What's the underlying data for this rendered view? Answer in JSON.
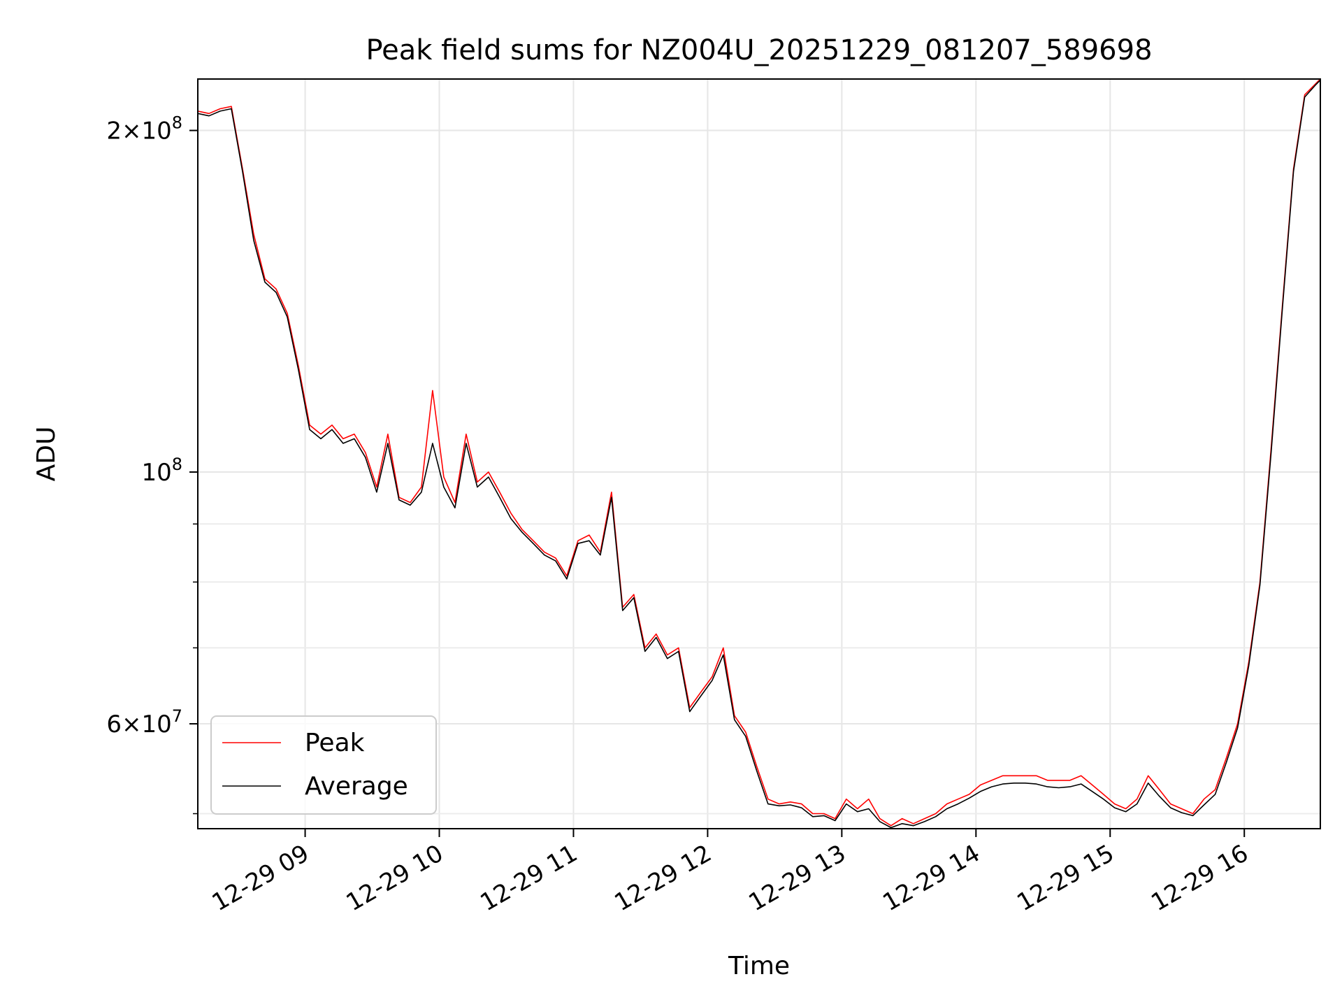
{
  "chart_data": {
    "type": "line",
    "title": "Peak field sums for NZ004U_20251229_081207_589698",
    "xlabel": "Time",
    "ylabel": "ADU",
    "yscale": "log",
    "xlim": [
      "2025-12-29 08:12",
      "2025-12-29 16:34"
    ],
    "ylim": [
      48500000,
      222000000
    ],
    "x_ticks": [
      "12-29 09",
      "12-29 10",
      "12-29 11",
      "12-29 12",
      "12-29 13",
      "12-29 14",
      "12-29 15",
      "12-29 16"
    ],
    "y_ticks": [
      {
        "value": 200000000,
        "mant": "2",
        "exp": "8"
      },
      {
        "value": 100000000,
        "mant": "",
        "exp": "8"
      },
      {
        "value": 60000000,
        "mant": "6",
        "exp": "7"
      }
    ],
    "y_minor_ticks": [
      50000000,
      70000000,
      80000000,
      90000000
    ],
    "grid": true,
    "legend_position": "lower-left",
    "colors": {
      "peak": "#ff0000",
      "average": "#000000"
    },
    "x": [
      "08:12",
      "08:17",
      "08:22",
      "08:27",
      "08:32",
      "08:37",
      "08:42",
      "08:47",
      "08:52",
      "08:57",
      "09:02",
      "09:07",
      "09:12",
      "09:17",
      "09:22",
      "09:27",
      "09:32",
      "09:37",
      "09:42",
      "09:47",
      "09:52",
      "09:57",
      "10:02",
      "10:07",
      "10:12",
      "10:17",
      "10:22",
      "10:27",
      "10:32",
      "10:37",
      "10:42",
      "10:47",
      "10:52",
      "10:57",
      "11:02",
      "11:07",
      "11:12",
      "11:17",
      "11:22",
      "11:27",
      "11:32",
      "11:37",
      "11:42",
      "11:47",
      "11:52",
      "11:57",
      "12:02",
      "12:07",
      "12:12",
      "12:17",
      "12:22",
      "12:27",
      "12:32",
      "12:37",
      "12:42",
      "12:47",
      "12:52",
      "12:57",
      "13:02",
      "13:07",
      "13:12",
      "13:17",
      "13:22",
      "13:27",
      "13:32",
      "13:37",
      "13:42",
      "13:47",
      "13:52",
      "13:57",
      "14:02",
      "14:07",
      "14:12",
      "14:17",
      "14:22",
      "14:27",
      "14:32",
      "14:37",
      "14:42",
      "14:47",
      "14:52",
      "14:57",
      "15:02",
      "15:07",
      "15:12",
      "15:17",
      "15:22",
      "15:27",
      "15:32",
      "15:37",
      "15:42",
      "15:47",
      "15:52",
      "15:57",
      "16:02",
      "16:07",
      "16:12",
      "16:17",
      "16:22",
      "16:27",
      "16:32",
      "16:34"
    ],
    "series": [
      {
        "name": "Peak",
        "values": [
          208000000,
          207000000,
          209000000,
          210000000,
          185000000,
          162000000,
          148000000,
          145000000,
          138000000,
          124000000,
          110000000,
          108000000,
          110000000,
          107000000,
          108000000,
          104000000,
          97000000,
          108000000,
          95000000,
          94000000,
          97000000,
          118000000,
          99000000,
          94000000,
          108000000,
          98000000,
          100000000,
          96000000,
          92000000,
          89000000,
          87000000,
          85000000,
          84000000,
          81000000,
          87000000,
          88000000,
          85000000,
          96000000,
          76000000,
          78000000,
          70000000,
          72000000,
          69000000,
          70000000,
          62000000,
          64000000,
          66000000,
          70000000,
          61000000,
          59000000,
          55000000,
          51500000,
          51000000,
          51200000,
          51000000,
          50000000,
          50000000,
          49500000,
          51500000,
          50500000,
          51500000,
          49500000,
          48800000,
          49500000,
          49000000,
          49500000,
          50000000,
          51000000,
          51500000,
          52000000,
          53000000,
          53500000,
          54000000,
          54000000,
          54000000,
          54000000,
          53500000,
          53500000,
          53500000,
          54000000,
          53000000,
          52000000,
          51000000,
          50500000,
          51500000,
          54000000,
          52500000,
          51000000,
          50500000,
          50000000,
          51500000,
          52500000,
          56000000,
          60000000,
          68000000,
          80000000,
          105000000,
          140000000,
          185000000,
          215000000,
          220000000,
          222000000
        ]
      },
      {
        "name": "Average",
        "values": [
          207000000,
          206000000,
          208000000,
          209000000,
          184000000,
          160000000,
          147000000,
          144000000,
          137000000,
          123000000,
          109000000,
          107000000,
          109000000,
          106000000,
          107000000,
          103000000,
          96000000,
          106000000,
          94500000,
          93500000,
          96000000,
          106000000,
          97000000,
          93000000,
          106000000,
          97000000,
          99000000,
          95000000,
          91000000,
          88500000,
          86500000,
          84500000,
          83500000,
          80500000,
          86500000,
          87000000,
          84500000,
          95000000,
          75500000,
          77500000,
          69500000,
          71500000,
          68500000,
          69500000,
          61500000,
          63500000,
          65500000,
          69000000,
          60500000,
          58500000,
          54500000,
          51000000,
          50800000,
          50900000,
          50600000,
          49700000,
          49800000,
          49300000,
          51000000,
          50200000,
          50500000,
          49200000,
          48600000,
          49000000,
          48800000,
          49200000,
          49700000,
          50500000,
          51000000,
          51600000,
          52300000,
          52800000,
          53100000,
          53200000,
          53200000,
          53100000,
          52800000,
          52700000,
          52800000,
          53100000,
          52300000,
          51500000,
          50600000,
          50200000,
          51000000,
          53200000,
          51800000,
          50600000,
          50100000,
          49800000,
          50900000,
          52000000,
          55500000,
          59500000,
          67500000,
          79500000,
          104000000,
          139000000,
          184000000,
          214000000,
          219500000,
          221500000
        ]
      }
    ]
  }
}
